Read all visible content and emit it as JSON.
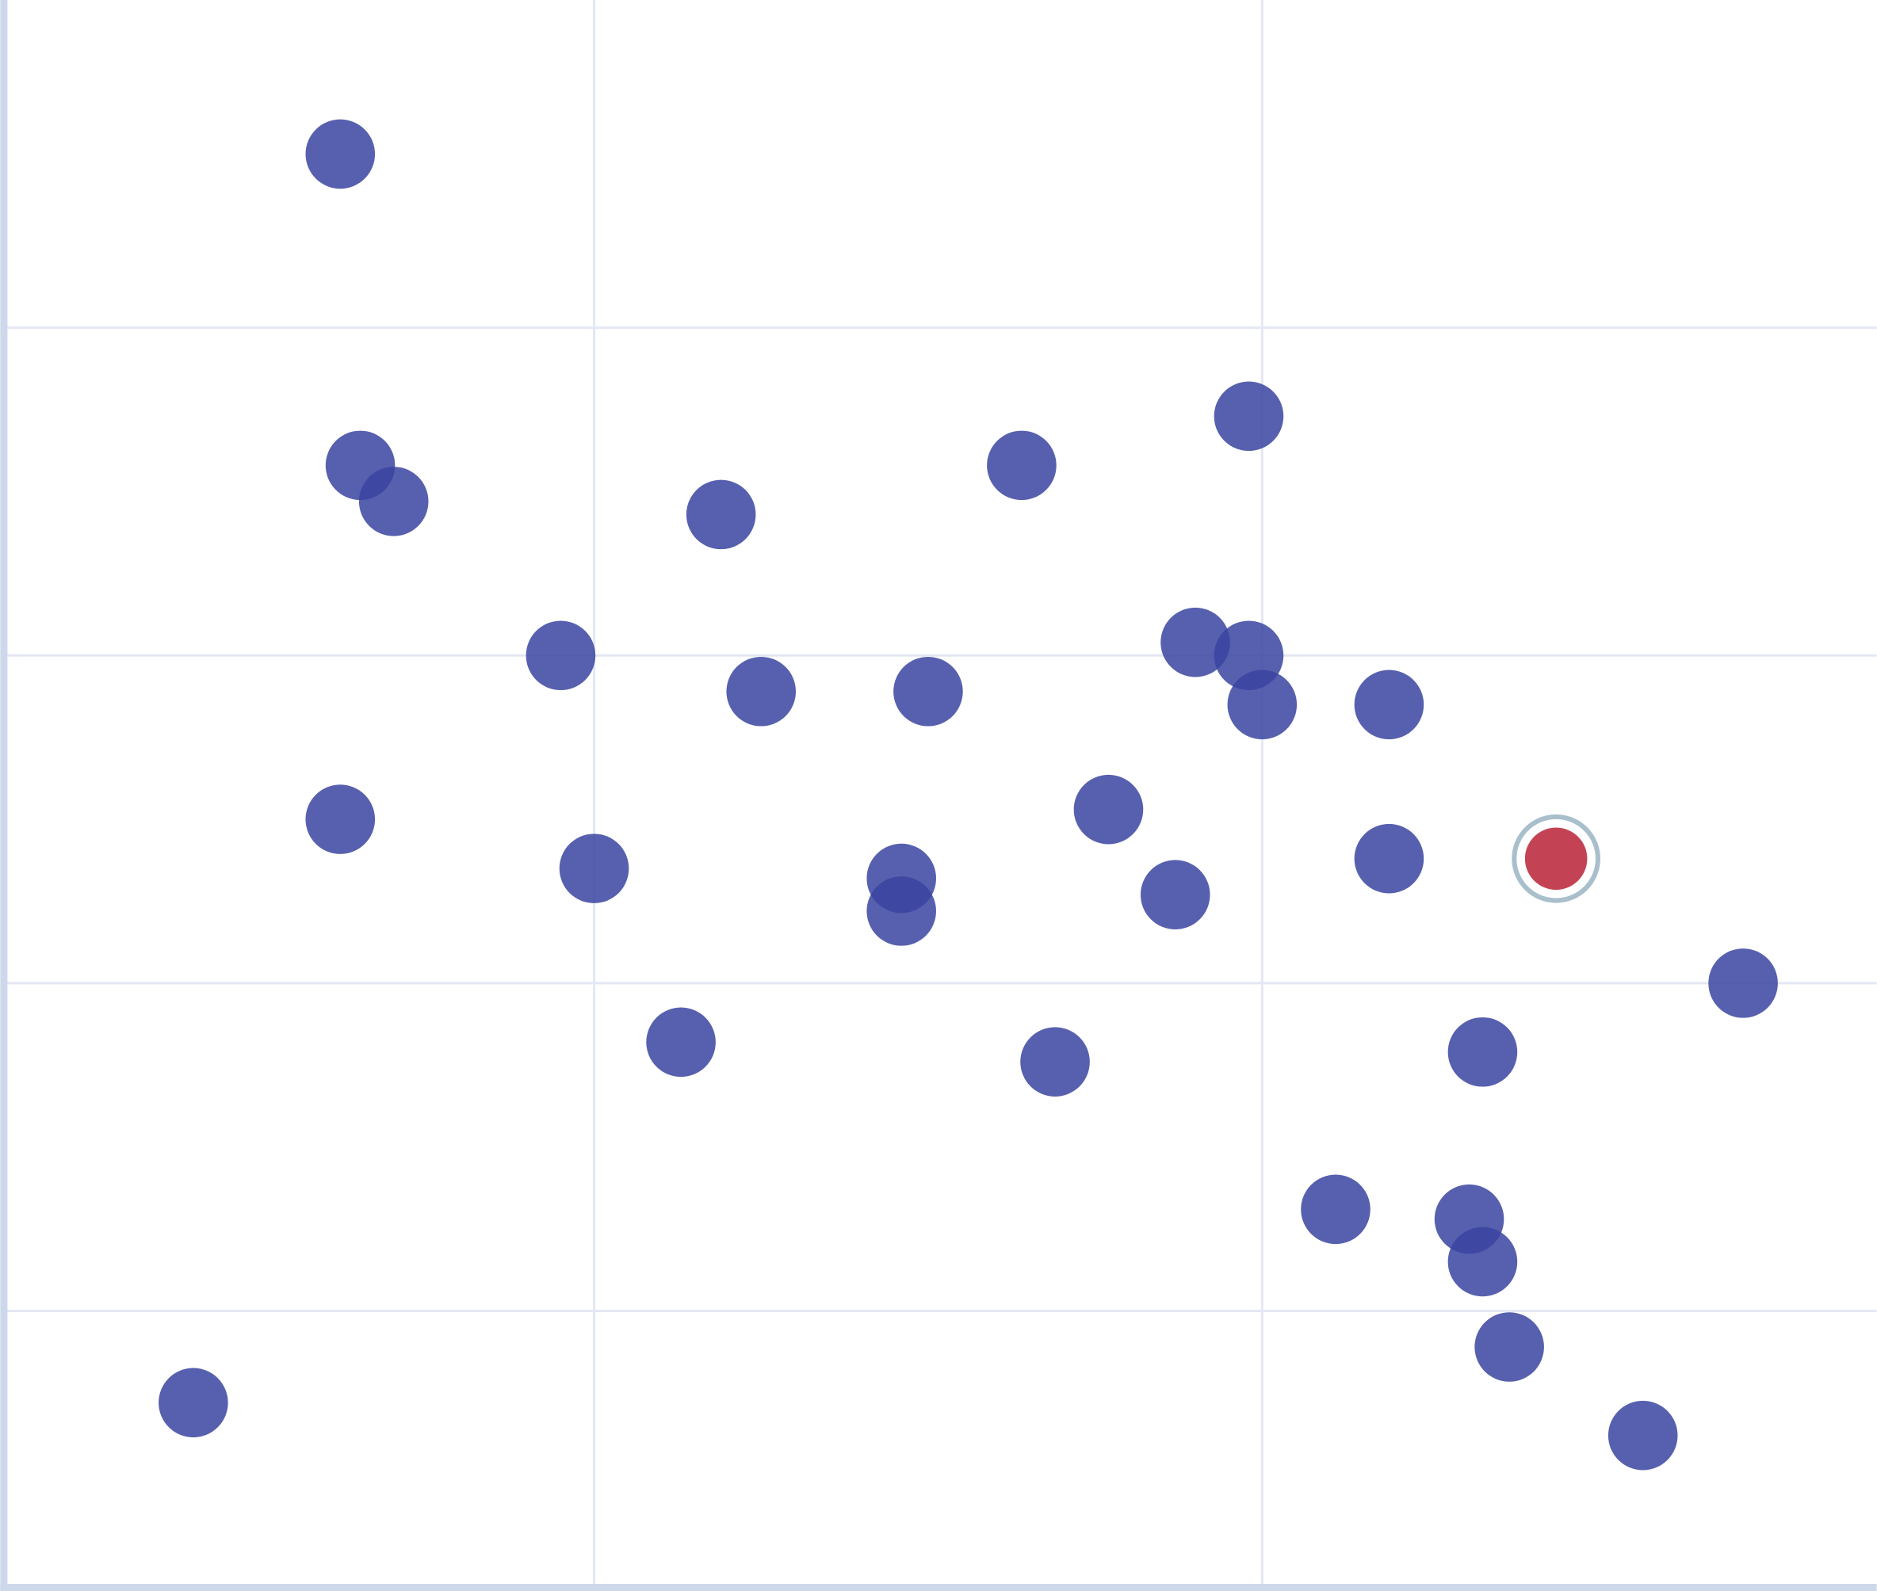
{
  "chart_data": {
    "type": "scatter",
    "title": "",
    "xlabel": "",
    "ylabel": "",
    "xlim": [
      0.12,
      2.92
    ],
    "ylim": [
      0.16,
      5.0
    ],
    "x_gridlines": [
      1,
      2
    ],
    "y_gridlines": [
      1,
      2,
      3,
      4
    ],
    "grid": true,
    "legend": "none",
    "colors": {
      "point": "#3a44a0",
      "highlight": "#c0394b",
      "highlight_ring": "#a9bfcc",
      "grid": "#e4e8f4",
      "axis": "#cdd8ea"
    },
    "points": [
      {
        "x": 0.62,
        "y": 4.53
      },
      {
        "x": 0.65,
        "y": 3.58
      },
      {
        "x": 0.7,
        "y": 3.47
      },
      {
        "x": 1.19,
        "y": 3.43
      },
      {
        "x": 1.64,
        "y": 3.58
      },
      {
        "x": 1.98,
        "y": 3.73
      },
      {
        "x": 0.95,
        "y": 3.0
      },
      {
        "x": 1.25,
        "y": 2.89
      },
      {
        "x": 1.5,
        "y": 2.89
      },
      {
        "x": 1.9,
        "y": 3.04
      },
      {
        "x": 1.98,
        "y": 3.0
      },
      {
        "x": 2.0,
        "y": 2.85
      },
      {
        "x": 2.19,
        "y": 2.85
      },
      {
        "x": 0.62,
        "y": 2.5
      },
      {
        "x": 1.0,
        "y": 2.35
      },
      {
        "x": 1.46,
        "y": 2.32
      },
      {
        "x": 1.46,
        "y": 2.22
      },
      {
        "x": 1.77,
        "y": 2.53
      },
      {
        "x": 1.87,
        "y": 2.27
      },
      {
        "x": 2.19,
        "y": 2.38
      },
      {
        "x": 2.72,
        "y": 2.0
      },
      {
        "x": 1.13,
        "y": 1.82
      },
      {
        "x": 1.69,
        "y": 1.76
      },
      {
        "x": 2.33,
        "y": 1.79
      },
      {
        "x": 2.11,
        "y": 1.31
      },
      {
        "x": 2.31,
        "y": 1.28
      },
      {
        "x": 2.33,
        "y": 1.15
      },
      {
        "x": 2.37,
        "y": 0.89
      },
      {
        "x": 0.4,
        "y": 0.72
      },
      {
        "x": 2.57,
        "y": 0.62
      }
    ],
    "highlighted_point": {
      "x": 2.44,
      "y": 2.38
    }
  }
}
